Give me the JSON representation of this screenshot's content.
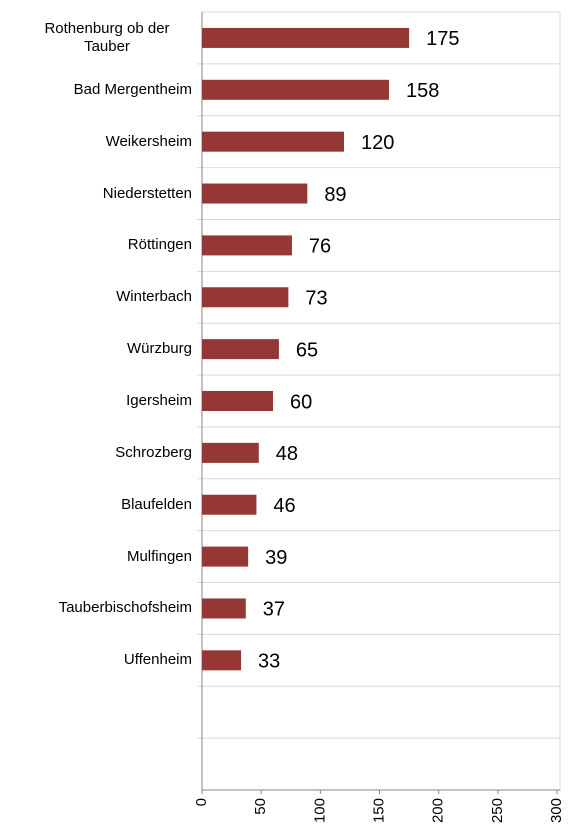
{
  "chart_data": {
    "type": "bar",
    "orientation": "horizontal",
    "categories": [
      "Rothenburg ob der Tauber",
      "Bad Mergentheim",
      "Weikersheim",
      "Niederstetten",
      "Röttingen",
      "Winterbach",
      "Würzburg",
      "Igersheim",
      "Schrozberg",
      "Blaufelden",
      "Mulfingen",
      "Tauberbischofsheim",
      "Uffenheim",
      null,
      null
    ],
    "values": [
      175,
      158,
      120,
      89,
      76,
      73,
      65,
      60,
      48,
      46,
      39,
      37,
      33,
      null,
      null
    ],
    "color": "#953735",
    "xlim": [
      0,
      300
    ],
    "xticks": [
      0,
      50,
      100,
      150,
      200,
      250,
      300
    ]
  }
}
